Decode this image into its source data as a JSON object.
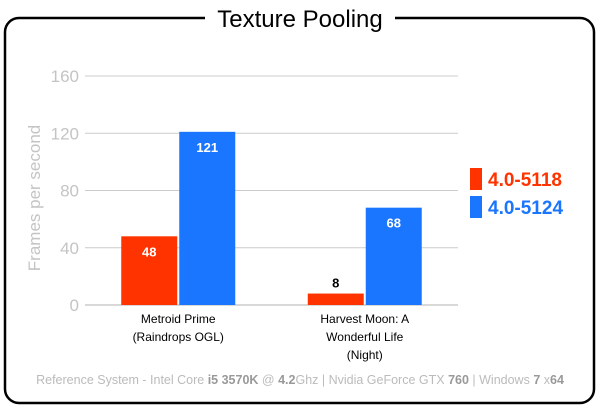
{
  "chart_data": {
    "type": "bar",
    "title": "Texture Pooling",
    "ylabel": "Frames per second",
    "xlabel": "",
    "ylim": [
      0,
      160
    ],
    "yticks": [
      0,
      40,
      80,
      120,
      160
    ],
    "grid": true,
    "legend_position": "right",
    "categories": [
      [
        "Metroid Prime",
        "(Raindrops OGL)"
      ],
      [
        "Harvest Moon: A",
        "Wonderful Life",
        "(Night)"
      ]
    ],
    "series": [
      {
        "name": "4.0-5118",
        "color": "#ff3300",
        "values": [
          48,
          8
        ]
      },
      {
        "name": "4.0-5124",
        "color": "#1a75ff",
        "values": [
          121,
          68
        ]
      }
    ],
    "footer": [
      {
        "text": "Reference System  -  Intel Core ",
        "bold": false
      },
      {
        "text": "i5 3570K",
        "bold": true
      },
      {
        "text": " @ ",
        "bold": false
      },
      {
        "text": "4.2",
        "bold": true
      },
      {
        "text": "Ghz | Nvidia GeForce GTX ",
        "bold": false
      },
      {
        "text": "760",
        "bold": true
      },
      {
        "text": " | Windows ",
        "bold": false
      },
      {
        "text": "7",
        "bold": true
      },
      {
        "text": " x",
        "bold": false
      },
      {
        "text": "64",
        "bold": true
      }
    ]
  },
  "colors": {
    "frame": "#000000",
    "grid": "#cccccc",
    "axis_text": "#c4c4c4",
    "footer_text": "#bbbbbb",
    "footer_bold": "#999999",
    "value_label_inside": "#ffffff",
    "value_label_outside": "#000000"
  }
}
